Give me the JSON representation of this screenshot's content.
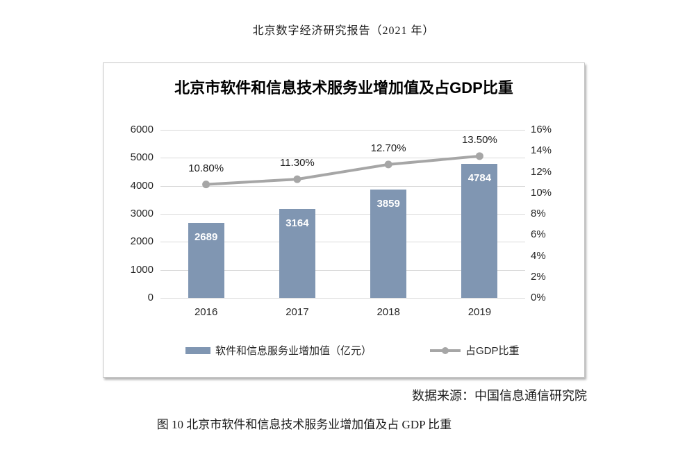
{
  "page": {
    "header": "北京数字经济研究报告（2021 年）",
    "source": "数据来源：中国信息通信研究院",
    "caption": "图 10 北京市软件和信息技术服务业增加值及占 GDP 比重"
  },
  "chart": {
    "title": "北京市软件和信息技术服务业增加值及占GDP比重",
    "colors": {
      "bar": "#8096b2",
      "line": "#a6a6a6",
      "grid": "#d9d9d9",
      "axis_text": "#262626",
      "bar_label": "#ffffff",
      "point_label": "#1a1a1a"
    }
  },
  "chart_data": {
    "type": "bar",
    "title": "北京市软件和信息技术服务业增加值及占GDP比重",
    "categories": [
      "2016",
      "2017",
      "2018",
      "2019"
    ],
    "series": [
      {
        "name": "软件和信息服务业增加值（亿元）",
        "type": "bar",
        "axis": "left",
        "values": [
          2689,
          3164,
          3859,
          4784
        ],
        "labels": [
          "2689",
          "3164",
          "3859",
          "4784"
        ]
      },
      {
        "name": "占GDP比重",
        "type": "line",
        "axis": "right",
        "values": [
          10.8,
          11.3,
          12.7,
          13.5
        ],
        "labels": [
          "10.80%",
          "11.30%",
          "12.70%",
          "13.50%"
        ]
      }
    ],
    "left_axis": {
      "min": 0,
      "max": 6000,
      "step": 1000,
      "ticks": [
        "0",
        "1000",
        "2000",
        "3000",
        "4000",
        "5000",
        "6000"
      ]
    },
    "right_axis": {
      "min": 0,
      "max": 16,
      "step": 2,
      "ticks": [
        "0%",
        "2%",
        "4%",
        "6%",
        "8%",
        "10%",
        "12%",
        "14%",
        "16%"
      ]
    },
    "grid": true,
    "legend_position": "bottom"
  }
}
